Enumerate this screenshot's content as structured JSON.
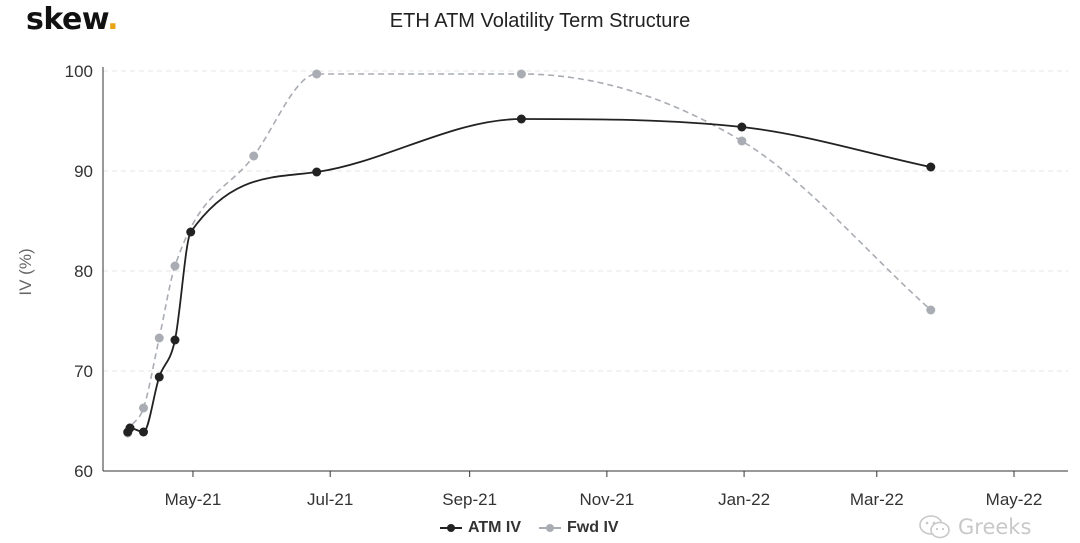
{
  "brand": {
    "name": "skew",
    "dot": "."
  },
  "watermark": {
    "text": "Greeks",
    "icon": "wechat-icon"
  },
  "chart_data": {
    "type": "line",
    "title": "ETH ATM Volatility Term Structure",
    "xlabel": "",
    "ylabel": "IV (%)",
    "ylim": [
      60,
      100
    ],
    "yticks": [
      60,
      70,
      80,
      90,
      100
    ],
    "xlim": [
      "2021-03-22",
      "2022-05-25"
    ],
    "xticks": [
      {
        "date": "2021-05-01",
        "label": "May-21"
      },
      {
        "date": "2021-07-01",
        "label": "Jul-21"
      },
      {
        "date": "2021-09-01",
        "label": "Sep-21"
      },
      {
        "date": "2021-11-01",
        "label": "Nov-21"
      },
      {
        "date": "2022-01-01",
        "label": "Jan-22"
      },
      {
        "date": "2022-03-01",
        "label": "Mar-22"
      },
      {
        "date": "2022-05-01",
        "label": "May-22"
      }
    ],
    "grid": true,
    "legend_position": "bottom-center",
    "series": [
      {
        "name": "ATM IV",
        "color": "#222222",
        "dash": false,
        "x": [
          "2021-04-09",
          "2021-04-16",
          "2021-04-23",
          "2021-04-30",
          "2021-06-25",
          "2021-09-24",
          "2021-12-31",
          "2022-03-25"
        ],
        "y": [
          63.9,
          69.4,
          73.1,
          83.9,
          89.9,
          95.2,
          94.4,
          90.4
        ],
        "x_extra": [
          "2021-04-02",
          "2021-04-03"
        ],
        "y_extra": [
          63.9,
          64.3
        ]
      },
      {
        "name": "Fwd IV",
        "color": "#a9adb3",
        "dash": true,
        "x": [
          "2021-04-02",
          "2021-04-03",
          "2021-04-09",
          "2021-04-16",
          "2021-04-23",
          "2021-05-28",
          "2021-06-25",
          "2021-09-24",
          "2021-12-31",
          "2022-03-25"
        ],
        "y": [
          63.8,
          64.3,
          66.3,
          73.3,
          80.5,
          91.5,
          99.7,
          99.7,
          93.0,
          76.1
        ]
      }
    ]
  }
}
